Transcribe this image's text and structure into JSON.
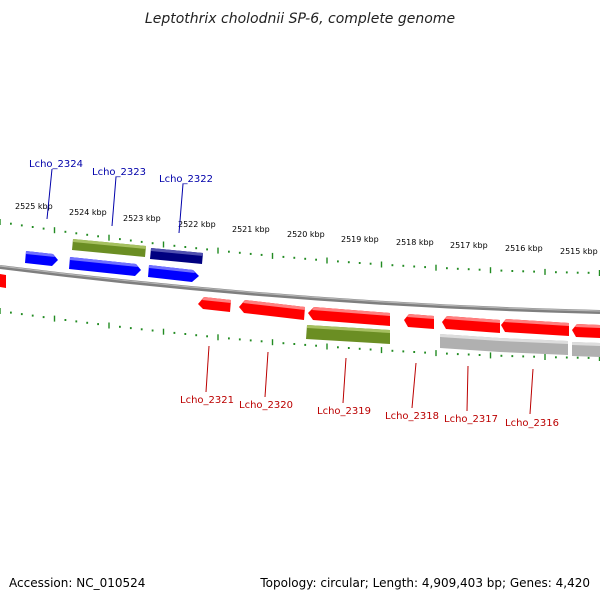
{
  "title": "Leptothrix cholodnii SP-6, complete genome",
  "accession": "Accession: NC_010524",
  "topology": "Topology: circular; Length: 4,909,403 bp; Genes: 4,420",
  "kbp_labels": [
    "2525 kbp",
    "2524 kbp",
    "2523 kbp",
    "2522 kbp",
    "2521 kbp",
    "2520 kbp",
    "2519 kbp",
    "2518 kbp",
    "2517 kbp",
    "2516 kbp",
    "2515 kbp"
  ],
  "top_gene_labels": [
    "Lcho_2324",
    "Lcho_2323",
    "Lcho_2322"
  ],
  "bottom_gene_labels": [
    "Lcho_2321",
    "Lcho_2320",
    "Lcho_2319",
    "Lcho_2318",
    "Lcho_2317",
    "Lcho_2316"
  ],
  "colors": {
    "forward_gene": "#0000ff",
    "forward_gene_dark": "#000080",
    "reverse_gene": "#ff0000",
    "rna_or_other": "#6b8e23",
    "pseudo": "#b0b0b0",
    "backbone": "#808080",
    "tick": "#228b22",
    "label_top": "#0000aa",
    "label_bottom": "#bb0000"
  }
}
